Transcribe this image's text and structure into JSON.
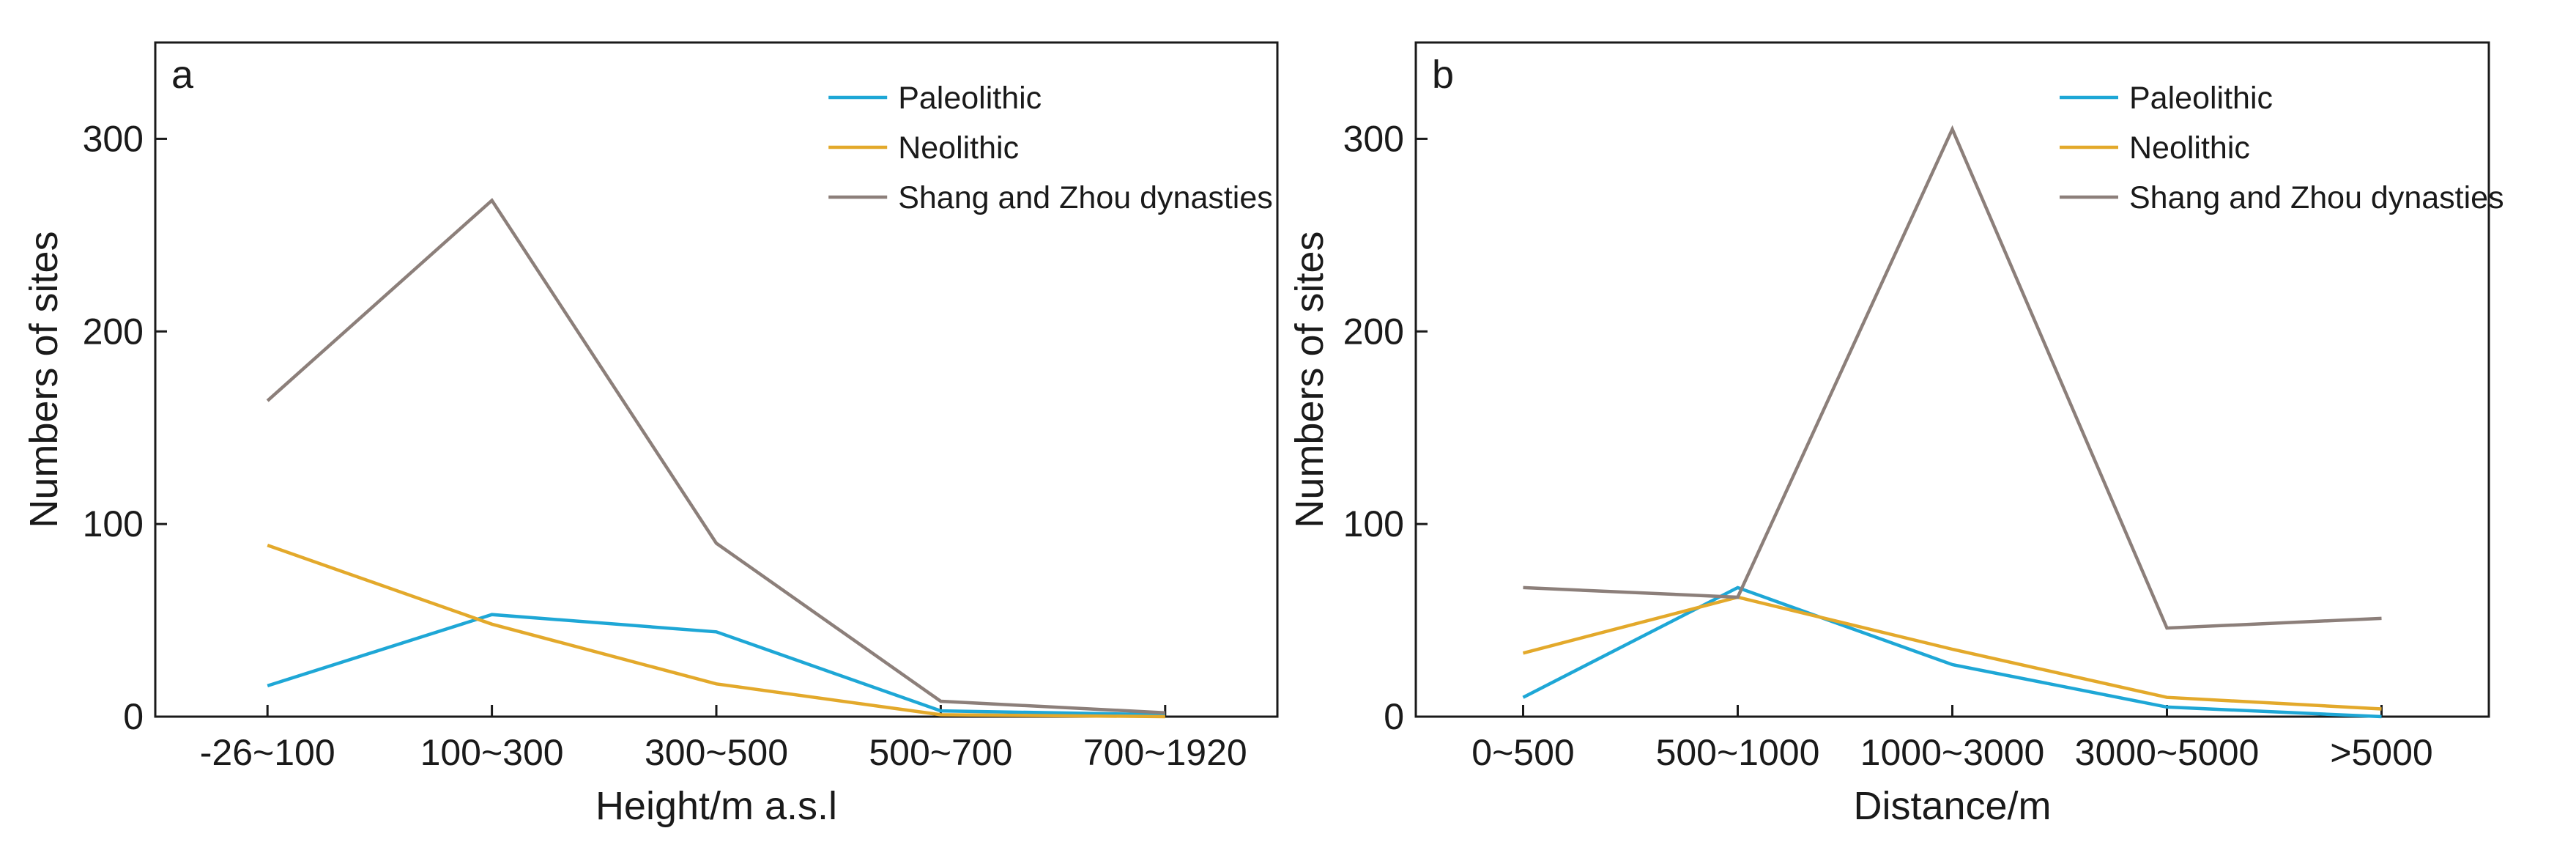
{
  "colors": {
    "paleolithic": "#1ea7d6",
    "neolithic": "#e3a92b",
    "shang_zhou": "#8c7f7a",
    "axis": "#1a1a1a",
    "background": "#ffffff"
  },
  "chart_data": [
    {
      "type": "line",
      "panel_label": "a",
      "title": "",
      "xlabel": "Height/m a.s.l",
      "ylabel": "Numbers of sites",
      "categories": [
        "-26~100",
        "100~300",
        "300~500",
        "500~700",
        "700~1920"
      ],
      "ylim": [
        0,
        350
      ],
      "yticks": [
        0,
        100,
        200,
        300
      ],
      "legend_position": "top-right",
      "series": [
        {
          "name": "Paleolithic",
          "key": "paleolithic",
          "values": [
            16,
            53,
            44,
            3,
            1
          ]
        },
        {
          "name": "Neolithic",
          "key": "neolithic",
          "values": [
            89,
            48,
            17,
            1,
            0
          ]
        },
        {
          "name": "Shang and Zhou dynasties",
          "key": "shang_zhou",
          "values": [
            164,
            268,
            90,
            8,
            2
          ]
        }
      ]
    },
    {
      "type": "line",
      "panel_label": "b",
      "title": "",
      "xlabel": "Distance/m",
      "ylabel": "Numbers of sites",
      "categories": [
        "0~500",
        "500~1000",
        "1000~3000",
        "3000~5000",
        ">5000"
      ],
      "ylim": [
        0,
        350
      ],
      "yticks": [
        0,
        100,
        200,
        300
      ],
      "legend_position": "top-right",
      "series": [
        {
          "name": "Paleolithic",
          "key": "paleolithic",
          "values": [
            10,
            67,
            27,
            5,
            0
          ]
        },
        {
          "name": "Neolithic",
          "key": "neolithic",
          "values": [
            33,
            62,
            35,
            10,
            4
          ]
        },
        {
          "name": "Shang and Zhou dynasties",
          "key": "shang_zhou",
          "values": [
            67,
            62,
            305,
            46,
            51
          ]
        }
      ]
    }
  ]
}
